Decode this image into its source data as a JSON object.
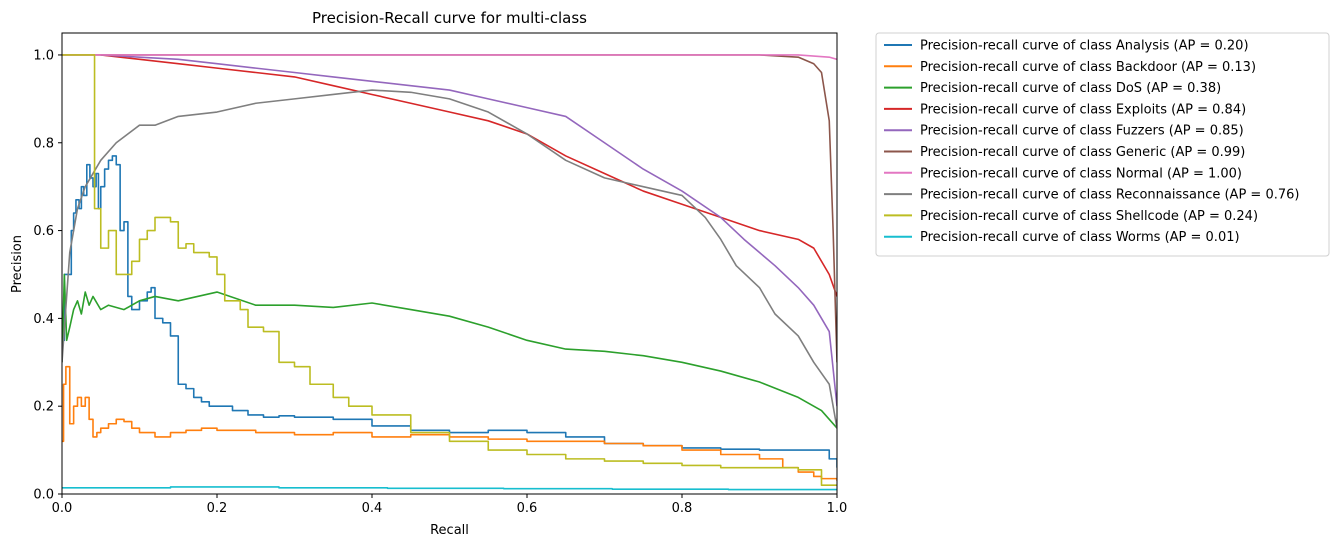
{
  "chart_data": {
    "type": "line",
    "title": "Precision-Recall curve for multi-class",
    "xlabel": "Recall",
    "ylabel": "Precision",
    "xlim": [
      0,
      1
    ],
    "ylim": [
      0,
      1.05
    ],
    "xticks": [
      0.0,
      0.2,
      0.4,
      0.6,
      0.8,
      1.0
    ],
    "yticks": [
      0.0,
      0.2,
      0.4,
      0.6,
      0.8,
      1.0
    ],
    "grid": false,
    "legend_position": "outside-upper-right",
    "series": [
      {
        "name": "Precision-recall curve of class Analysis (AP = 0.20)",
        "color": "#1f77b4",
        "step": true,
        "x": [
          0,
          0.003,
          0.008,
          0.012,
          0.015,
          0.018,
          0.022,
          0.025,
          0.028,
          0.032,
          0.036,
          0.04,
          0.044,
          0.047,
          0.05,
          0.055,
          0.06,
          0.065,
          0.07,
          0.075,
          0.08,
          0.085,
          0.09,
          0.1,
          0.11,
          0.115,
          0.12,
          0.13,
          0.14,
          0.15,
          0.16,
          0.17,
          0.18,
          0.19,
          0.2,
          0.22,
          0.24,
          0.26,
          0.28,
          0.3,
          0.35,
          0.4,
          0.45,
          0.5,
          0.55,
          0.6,
          0.65,
          0.7,
          0.75,
          0.8,
          0.85,
          0.9,
          0.95,
          0.98,
          0.99,
          1.0
        ],
        "y": [
          0.35,
          0.5,
          0.5,
          0.6,
          0.64,
          0.67,
          0.65,
          0.7,
          0.68,
          0.75,
          0.72,
          0.7,
          0.73,
          0.65,
          0.7,
          0.74,
          0.76,
          0.77,
          0.75,
          0.6,
          0.62,
          0.45,
          0.42,
          0.44,
          0.46,
          0.47,
          0.4,
          0.39,
          0.36,
          0.25,
          0.24,
          0.22,
          0.21,
          0.2,
          0.2,
          0.19,
          0.18,
          0.175,
          0.178,
          0.175,
          0.17,
          0.155,
          0.145,
          0.14,
          0.145,
          0.14,
          0.13,
          0.115,
          0.11,
          0.105,
          0.102,
          0.1,
          0.1,
          0.1,
          0.08,
          0.06
        ]
      },
      {
        "name": "Precision-recall curve of class Backdoor (AP = 0.13)",
        "color": "#ff7f0e",
        "step": true,
        "x": [
          0,
          0.002,
          0.005,
          0.01,
          0.015,
          0.02,
          0.025,
          0.03,
          0.035,
          0.04,
          0.045,
          0.05,
          0.06,
          0.07,
          0.08,
          0.09,
          0.1,
          0.12,
          0.14,
          0.16,
          0.18,
          0.2,
          0.25,
          0.3,
          0.35,
          0.4,
          0.45,
          0.5,
          0.55,
          0.6,
          0.65,
          0.7,
          0.75,
          0.8,
          0.85,
          0.9,
          0.93,
          0.95,
          0.97,
          0.98,
          1.0
        ],
        "y": [
          0.12,
          0.25,
          0.29,
          0.16,
          0.2,
          0.22,
          0.2,
          0.22,
          0.17,
          0.13,
          0.14,
          0.15,
          0.16,
          0.17,
          0.165,
          0.15,
          0.14,
          0.13,
          0.14,
          0.145,
          0.15,
          0.145,
          0.14,
          0.135,
          0.14,
          0.13,
          0.135,
          0.13,
          0.125,
          0.12,
          0.12,
          0.115,
          0.11,
          0.1,
          0.09,
          0.08,
          0.06,
          0.05,
          0.04,
          0.035,
          0.03
        ]
      },
      {
        "name": "Precision-recall curve of class DoS (AP = 0.38)",
        "color": "#2ca02c",
        "step": false,
        "x": [
          0,
          0.003,
          0.006,
          0.01,
          0.015,
          0.02,
          0.025,
          0.03,
          0.035,
          0.04,
          0.05,
          0.06,
          0.08,
          0.1,
          0.12,
          0.15,
          0.2,
          0.25,
          0.3,
          0.35,
          0.4,
          0.45,
          0.5,
          0.55,
          0.6,
          0.65,
          0.7,
          0.75,
          0.8,
          0.85,
          0.9,
          0.95,
          0.98,
          1.0
        ],
        "y": [
          0.3,
          0.5,
          0.35,
          0.38,
          0.42,
          0.44,
          0.41,
          0.46,
          0.43,
          0.45,
          0.42,
          0.43,
          0.42,
          0.44,
          0.45,
          0.44,
          0.46,
          0.43,
          0.43,
          0.425,
          0.435,
          0.42,
          0.405,
          0.38,
          0.35,
          0.33,
          0.325,
          0.315,
          0.3,
          0.28,
          0.255,
          0.22,
          0.19,
          0.15
        ]
      },
      {
        "name": "Precision-recall curve of class Exploits (AP = 0.84)",
        "color": "#d62728",
        "step": false,
        "x": [
          0.05,
          0.1,
          0.15,
          0.2,
          0.25,
          0.3,
          0.35,
          0.4,
          0.45,
          0.5,
          0.55,
          0.6,
          0.65,
          0.7,
          0.75,
          0.8,
          0.85,
          0.9,
          0.95,
          0.97,
          0.99,
          1.0
        ],
        "y": [
          1.0,
          0.99,
          0.98,
          0.97,
          0.96,
          0.95,
          0.93,
          0.91,
          0.89,
          0.87,
          0.85,
          0.82,
          0.77,
          0.73,
          0.69,
          0.66,
          0.63,
          0.6,
          0.58,
          0.56,
          0.5,
          0.45
        ]
      },
      {
        "name": "Precision-recall curve of class Fuzzers (AP = 0.85)",
        "color": "#9467bd",
        "step": false,
        "x": [
          0.05,
          0.1,
          0.15,
          0.2,
          0.25,
          0.3,
          0.35,
          0.4,
          0.45,
          0.5,
          0.55,
          0.6,
          0.65,
          0.7,
          0.75,
          0.8,
          0.85,
          0.88,
          0.9,
          0.92,
          0.95,
          0.97,
          0.99,
          1.0
        ],
        "y": [
          1.0,
          0.995,
          0.99,
          0.98,
          0.97,
          0.96,
          0.95,
          0.94,
          0.93,
          0.92,
          0.9,
          0.88,
          0.86,
          0.8,
          0.74,
          0.69,
          0.63,
          0.58,
          0.55,
          0.52,
          0.47,
          0.43,
          0.37,
          0.2
        ]
      },
      {
        "name": "Precision-recall curve of class Generic (AP = 0.99)",
        "color": "#8c564b",
        "step": false,
        "x": [
          0,
          0.5,
          0.9,
          0.95,
          0.97,
          0.98,
          0.99,
          0.995,
          1.0
        ],
        "y": [
          1.0,
          1.0,
          1.0,
          0.995,
          0.98,
          0.96,
          0.85,
          0.6,
          0.3
        ]
      },
      {
        "name": "Precision-recall curve of class Normal (AP = 1.00)",
        "color": "#e377c2",
        "step": false,
        "x": [
          0,
          0.5,
          0.95,
          0.99,
          1.0
        ],
        "y": [
          1.0,
          1.0,
          1.0,
          0.995,
          0.99
        ]
      },
      {
        "name": "Precision-recall curve of class Reconnaissance (AP = 0.76)",
        "color": "#7f7f7f",
        "step": false,
        "x": [
          0,
          0.01,
          0.02,
          0.03,
          0.05,
          0.07,
          0.1,
          0.12,
          0.15,
          0.2,
          0.25,
          0.3,
          0.35,
          0.4,
          0.45,
          0.5,
          0.55,
          0.6,
          0.65,
          0.7,
          0.75,
          0.8,
          0.83,
          0.85,
          0.87,
          0.9,
          0.92,
          0.95,
          0.97,
          0.99,
          1.0
        ],
        "y": [
          0.3,
          0.55,
          0.65,
          0.7,
          0.76,
          0.8,
          0.84,
          0.84,
          0.86,
          0.87,
          0.89,
          0.9,
          0.91,
          0.92,
          0.915,
          0.9,
          0.87,
          0.82,
          0.76,
          0.72,
          0.7,
          0.68,
          0.63,
          0.58,
          0.52,
          0.47,
          0.41,
          0.36,
          0.3,
          0.25,
          0.15
        ]
      },
      {
        "name": "Precision-recall curve of class Shellcode (AP = 0.24)",
        "color": "#bcbd22",
        "step": true,
        "x": [
          0,
          0.04,
          0.042,
          0.05,
          0.06,
          0.07,
          0.09,
          0.1,
          0.11,
          0.12,
          0.14,
          0.15,
          0.16,
          0.17,
          0.19,
          0.2,
          0.21,
          0.23,
          0.24,
          0.26,
          0.28,
          0.3,
          0.32,
          0.35,
          0.37,
          0.4,
          0.45,
          0.5,
          0.55,
          0.6,
          0.65,
          0.7,
          0.75,
          0.8,
          0.85,
          0.9,
          0.95,
          0.98,
          1.0
        ],
        "y": [
          1.0,
          1.0,
          0.65,
          0.56,
          0.6,
          0.5,
          0.53,
          0.58,
          0.6,
          0.63,
          0.62,
          0.56,
          0.57,
          0.55,
          0.54,
          0.5,
          0.44,
          0.42,
          0.38,
          0.37,
          0.3,
          0.29,
          0.25,
          0.22,
          0.2,
          0.18,
          0.14,
          0.12,
          0.1,
          0.09,
          0.08,
          0.075,
          0.07,
          0.065,
          0.06,
          0.06,
          0.055,
          0.02,
          0.02
        ]
      },
      {
        "name": "Precision-recall curve of class Worms (AP = 0.01)",
        "color": "#17becf",
        "step": true,
        "x": [
          0,
          0.14,
          0.28,
          0.42,
          0.57,
          0.71,
          0.86,
          1.0
        ],
        "y": [
          0.014,
          0.016,
          0.014,
          0.013,
          0.012,
          0.011,
          0.01,
          0.01
        ]
      }
    ]
  }
}
